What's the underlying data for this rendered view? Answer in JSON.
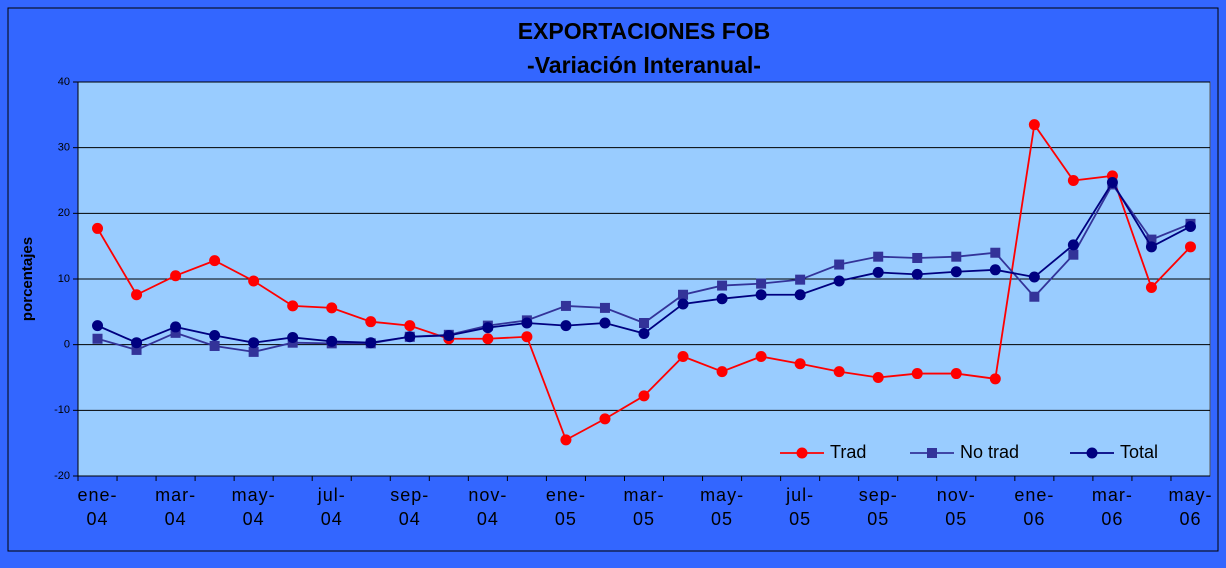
{
  "chart_data": {
    "type": "line",
    "title": "EXPORTACIONES FOB",
    "subtitle": "-Variación Interanual-",
    "y_label": "porcentajes",
    "categories": [
      "ene-04",
      null,
      "mar-04",
      null,
      "may-04",
      null,
      "jul-04",
      null,
      "sep-04",
      null,
      "nov-04",
      null,
      "ene-05",
      null,
      "mar-05",
      null,
      "may-05",
      null,
      "jul-05",
      null,
      "sep-05",
      null,
      "nov-05",
      null,
      "ene-06",
      null,
      "mar-06",
      null,
      "may-06"
    ],
    "series": [
      {
        "name": "Trad",
        "color": "#ff0000",
        "marker": "circle",
        "values": [
          17.7,
          7.6,
          10.5,
          12.8,
          9.7,
          5.9,
          5.6,
          3.5,
          2.9,
          0.9,
          0.9,
          1.2,
          -14.5,
          -11.3,
          -7.8,
          -1.8,
          -4.1,
          -1.8,
          -2.9,
          -4.1,
          -5.0,
          -4.4,
          -4.4,
          -5.2,
          33.5,
          25.0,
          25.7,
          8.7,
          14.9
        ]
      },
      {
        "name": "No trad",
        "color": "#333399",
        "marker": "square",
        "values": [
          0.9,
          -0.8,
          1.8,
          -0.2,
          -1.1,
          0.3,
          0.2,
          0.2,
          1.2,
          1.5,
          2.9,
          3.7,
          5.9,
          5.6,
          3.3,
          7.6,
          9.0,
          9.3,
          9.9,
          12.2,
          13.4,
          13.2,
          13.4,
          14.0,
          7.3,
          13.7,
          24.4,
          16.0,
          18.4
        ]
      },
      {
        "name": "Total",
        "color": "#000080",
        "marker": "circle",
        "values": [
          2.9,
          0.3,
          2.7,
          1.4,
          0.3,
          1.1,
          0.5,
          0.3,
          1.2,
          1.4,
          2.6,
          3.3,
          2.9,
          3.3,
          1.7,
          6.2,
          7.0,
          7.6,
          7.6,
          9.7,
          11.0,
          10.7,
          11.1,
          11.4,
          10.3,
          15.2,
          24.7,
          14.9,
          18.0
        ]
      }
    ],
    "ylim": [
      -20,
      40
    ],
    "yticks": [
      -20,
      -10,
      0,
      10,
      20,
      30,
      40
    ],
    "grid": true,
    "legend": "bottom-right"
  }
}
